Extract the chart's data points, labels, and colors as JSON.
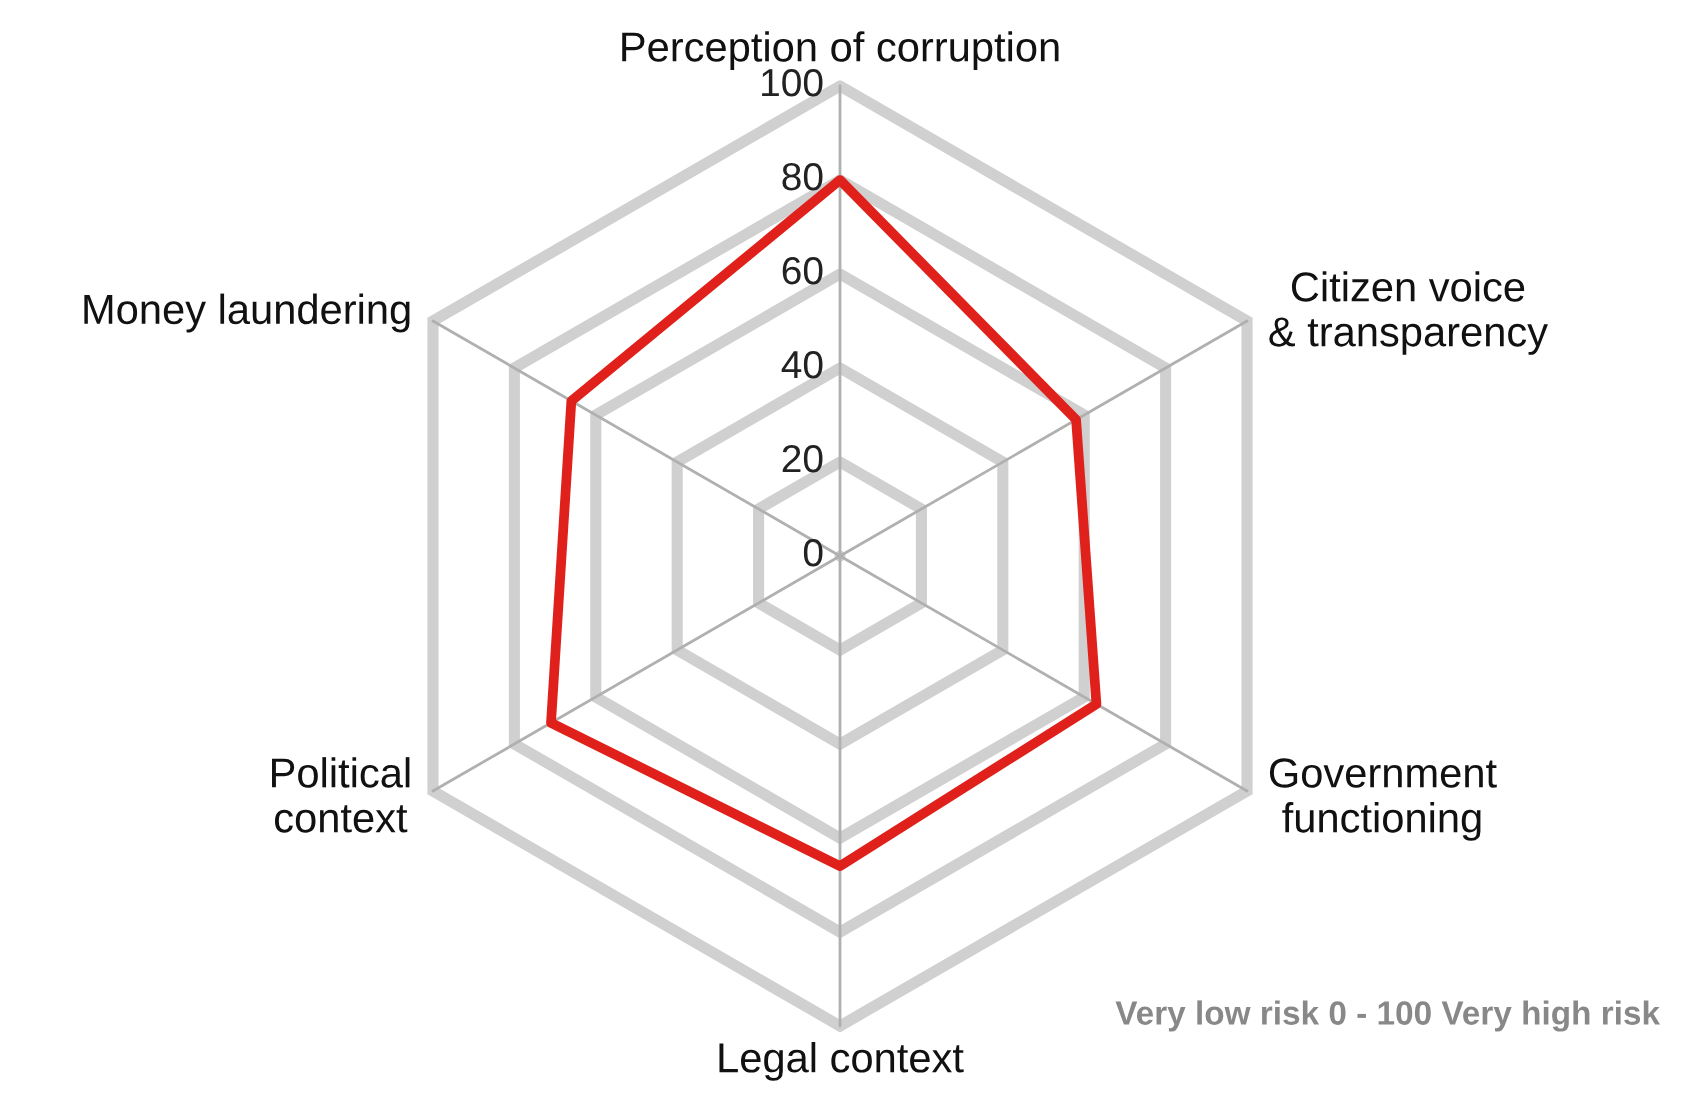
{
  "chart_data": {
    "type": "radar",
    "categories": [
      "Perception of corruption",
      "Citizen voice\n& transparency",
      "Government\nfunctioning",
      "Legal context",
      "Political\ncontext",
      "Money laundering"
    ],
    "series": [
      {
        "color": "#e0201b",
        "values": [
          80,
          58,
          63,
          66,
          71,
          66
        ]
      }
    ],
    "ylim": [
      0,
      100
    ],
    "yticks": [
      0,
      20,
      40,
      60,
      80,
      100
    ],
    "grid": true,
    "annotations": [
      "Very low risk 0 - 100 Very high risk"
    ]
  }
}
